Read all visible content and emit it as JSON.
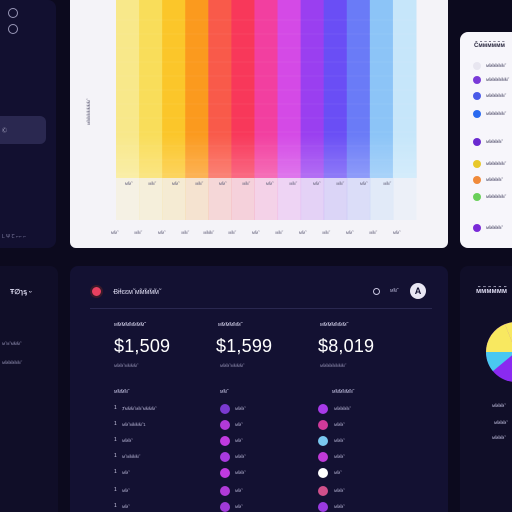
{
  "sidebar": {
    "active_item": "Ⓒ",
    "footer_label": "L  Ψ  Ꞇ  ⌐⌐ ⌐",
    "section_title": "Ŧ∅ɿᶊ  ᵕ",
    "lines": [
      "ᴍ̃ ᴍ̃ ᴍ̃ᴍ̃ᴍ̃",
      "ᴍ̃ᴍ̃ᴍ̃ᴍ̃ᴍ̃ᴍ̃"
    ]
  },
  "chart": {
    "ylabel": "ᴍ̃ᴍ̃ᴍ̃ᴍ̃ᴍ̃ᴍ̃ᴍ̃ᴍ̃",
    "inner_ticks": [
      "ᴍ̃ᴍ̃",
      "ᴍ̃ᴍ̃",
      "ᴍ̃ᴍ̃",
      "ᴍ̃ᴍ̃",
      "ᴍ̃ᴍ̃",
      "ᴍ̃ᴍ̃",
      "ᴍ̃ᴍ̃",
      "ᴍ̃ᴍ̃",
      "ᴍ̃ᴍ̃",
      "ᴍ̃ᴍ̃",
      "ᴍ̃ᴍ̃",
      "ᴍ̃ᴍ̃"
    ],
    "outer_ticks": [
      "ᴍ̃ᴍ̃",
      "ᴍ̃ᴍ̃",
      "ᴍ̃ᴍ̃",
      "ᴍ̃ᴍ̃",
      "ᴍ̃ᴍ̃ᴍ̃",
      "ᴍ̃ᴍ̃",
      "ᴍ̃ᴍ̃",
      "ᴍ̃ᴍ̃",
      "ᴍ̃ᴍ̃",
      "ᴍ̃ᴍ̃",
      "ᴍ̃ᴍ̃",
      "ᴍ̃ᴍ̃",
      "ᴍ̃ᴍ̃"
    ],
    "colors": [
      "#f8e88a",
      "#f9dd5a",
      "#fbc62a",
      "#fb9a1e",
      "#f95a4a",
      "#f8385a",
      "#f23fa0",
      "#d44ae6",
      "#9a3ff0",
      "#6a4ef5",
      "#6a7bf7",
      "#8cc4f7",
      "#c6e6fa"
    ]
  },
  "right_panel": {
    "title": "Ĉᴍ̃ᴍ̃ᴍ̃ᴍ̃ᴍ̃ᴍ̃",
    "rows": [
      {
        "text": "ᴍ̃ᴍ̃ᴍ̃ᴍ̃ᴍ̃ᴍ̃",
        "color": "#e8e6f0"
      },
      {
        "text": "ᴍ̃ᴍ̃ᴍ̃ᴍ̃ᴍ̃ᴍ̃ᴍ̃",
        "color": "#7a3ad8"
      },
      {
        "text": "ᴍ̃ᴍ̃ᴍ̃ᴍ̃ᴍ̃ᴍ̃",
        "color": "#4a5ae8"
      },
      {
        "text": "ᴍ̃ᴍ̃ᴍ̃ᴍ̃ᴍ̃ᴍ̃",
        "color": "#2a6af0"
      },
      {
        "text": "ᴍ̃ᴍ̃ᴍ̃ᴍ̃ᴍ̃",
        "color": "#6a2ad0"
      },
      {
        "text": "ᴍ̃ᴍ̃ᴍ̃ᴍ̃ᴍ̃ᴍ̃",
        "color": "#e8c82a"
      },
      {
        "text": "ᴍ̃ᴍ̃ᴍ̃ᴍ̃ᴍ̃",
        "color": "#f08a3a"
      },
      {
        "text": "ᴍ̃ᴍ̃ᴍ̃ᴍ̃ᴍ̃ᴍ̃",
        "color": "#6ad05a"
      },
      {
        "text": "ᴍ̃ᴍ̃ᴍ̃ᴍ̃ᴍ̃",
        "color": "#7a2ad8"
      }
    ]
  },
  "main": {
    "title": "Ꞗɨɬɛɛᴍ̃  ᴍ̃ᴍ̃ᴍ̃ᴍ̃ᴍ̃",
    "status_label": "ᴍ̃ᴍ̃",
    "avatar_letter": "A",
    "stats": [
      {
        "label": "ᴍ̃ᴍ̃ᴍ̃ᴍ̃ᴍ̃ᴍ̃ᴍ̃ᴍ̃",
        "value": "$1,509",
        "sub": "ᴍ̃ᴍ̃ᴍ̃  ᴍ̃ᴍ̃ᴍ̃ᴍ̃"
      },
      {
        "label": "ᴍ̃ᴍ̃ᴍ̃ᴍ̃ᴍ̃ᴍ̃",
        "value": "$1,599",
        "sub": "ᴍ̃ᴍ̃ᴍ̃  ᴍ̃ᴍ̃ᴍ̃ᴍ̃"
      },
      {
        "label": "ᴍ̃ᴍ̃ᴍ̃ᴍ̃ᴍ̃ᴍ̃ᴍ̃",
        "value": "$8,019",
        "sub": "ᴍ̃ᴍ̃ᴍ̃ᴍ̃ᴍ̃ᴍ̃ᴍ̃ᴍ̃"
      }
    ],
    "col1": {
      "head": "ᴍ̃ᴍ̃ᴍ̃ᴍ̃",
      "rows": [
        {
          "num": "1",
          "text": "Ⱦᴍ̃ᴍ̃ᴍ̃  ᴍ̃ᴍ̃  ᴍ̃ᴍ̃ᴍ̃ᴍ̃"
        },
        {
          "num": "1",
          "text": "ᴍ̃ᴍ̃  ᴍ̃ᴍ̃ᴍ̃ᴍ̃  1"
        },
        {
          "num": "1",
          "text": "ᴍ̃ᴍ̃ᴍ̃"
        },
        {
          "num": "1",
          "text": "ᴍ̃  ᴍ̃ᴍ̃ᴍ̃ᴍ̃"
        },
        {
          "num": "1",
          "text": "ᴍ̃ᴍ̃"
        },
        {
          "num": "1",
          "text": "ᴍ̃ᴍ̃"
        },
        {
          "num": "1",
          "text": "ᴍ̃ᴍ̃"
        }
      ]
    },
    "col2": {
      "head": "ᴍ̃ᴍ̃",
      "rows": [
        {
          "text": "ᴍ̃ᴍ̃ᴍ̃",
          "color": "#7a3ad0"
        },
        {
          "text": "ᴍ̃ᴍ̃",
          "color": "#b03ad8"
        },
        {
          "text": "ᴍ̃ᴍ̃",
          "color": "#c03ae0"
        },
        {
          "text": "ᴍ̃ᴍ̃ᴍ̃",
          "color": "#a83ae0"
        },
        {
          "text": "ᴍ̃ᴍ̃ᴍ̃",
          "color": "#c03ae0"
        },
        {
          "text": "ᴍ̃ᴍ̃",
          "color": "#b03ad8"
        },
        {
          "text": "ᴍ̃ᴍ̃",
          "color": "#a03ad8"
        }
      ]
    },
    "col3": {
      "head": "ᴍ̃ᴍ̃ᴍ̃ᴍ̃ᴍ̃ᴍ̃",
      "rows": [
        {
          "text": "ᴍ̃ᴍ̃ᴍ̃ᴍ̃ᴍ̃",
          "color": "#a83ae8"
        },
        {
          "text": "ᴍ̃ᴍ̃ᴍ̃",
          "color": "#d03a9a"
        },
        {
          "text": "ᴍ̃ᴍ̃ᴍ̃",
          "color": "#7ac8f0"
        },
        {
          "text": "ᴍ̃ᴍ̃ᴍ̃",
          "color": "#c03ad8"
        },
        {
          "text": "ᴍ̃ᴍ̃",
          "color": "#ffffff"
        },
        {
          "text": "ᴍ̃ᴍ̃ᴍ̃",
          "color": "#d0508a"
        },
        {
          "text": "ᴍ̃ᴍ̃ᴍ̃",
          "color": "#9a3ae0"
        }
      ]
    }
  },
  "pie_panel": {
    "title": "ᴍ̃ᴍ̃ᴍ̃ᴍ̃ᴍ̃ᴍ̃",
    "labels": [
      "ᴍ̃ᴍ̃ᴍ̃ᴍ̃",
      "ᴍ̃ᴍ̃ᴍ̃ᴍ̃",
      "ᴍ̃ᴍ̃ᴍ̃ᴍ̃"
    ],
    "colors": [
      "#f8e860",
      "#8a2af0",
      "#c040e8",
      "#4ac8f0"
    ]
  }
}
